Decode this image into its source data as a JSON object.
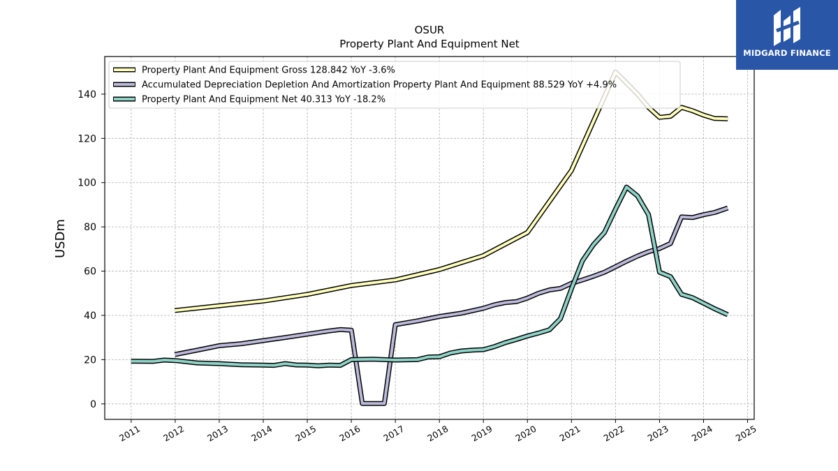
{
  "logo": {
    "text": "MIDGARD FINANCE",
    "color": "#2a56a8"
  },
  "chart_data": {
    "type": "line",
    "title": "OSUR",
    "subtitle": "Property Plant And Equipment Net",
    "xlabel": "",
    "ylabel": "USDm",
    "xlim": [
      2010.4,
      2025.15
    ],
    "ylim": [
      -7,
      157
    ],
    "x_ticks": [
      "2011",
      "2012",
      "2013",
      "2014",
      "2015",
      "2016",
      "2017",
      "2018",
      "2019",
      "2020",
      "2021",
      "2022",
      "2023",
      "2024",
      "2025"
    ],
    "y_ticks": [
      0,
      20,
      40,
      60,
      80,
      100,
      120,
      140
    ],
    "grid": true,
    "legend_position": "top-left",
    "series": [
      {
        "name": "Property Plant And Equipment Gross  128.842 YoY -3.6%",
        "color": "#ffffbb",
        "points": [
          [
            2011.99,
            42.2
          ],
          [
            2014.0,
            46.5
          ],
          [
            2015.0,
            49.5
          ],
          [
            2016.0,
            53.5
          ],
          [
            2017.0,
            56.0
          ],
          [
            2018.0,
            60.7
          ],
          [
            2019.0,
            67.0
          ],
          [
            2020.0,
            77.5
          ],
          [
            2021.0,
            105.5
          ],
          [
            2022.0,
            150.0
          ],
          [
            2022.25,
            145.0
          ],
          [
            2022.5,
            140.0
          ],
          [
            2022.75,
            134.0
          ],
          [
            2023.0,
            129.5
          ],
          [
            2023.25,
            130.0
          ],
          [
            2023.5,
            134.0
          ],
          [
            2023.75,
            132.5
          ],
          [
            2024.0,
            130.5
          ],
          [
            2024.25,
            129.0
          ],
          [
            2024.55,
            128.842
          ]
        ]
      },
      {
        "name": "Accumulated Depreciation Depletion And Amortization Property Plant And Equipment  88.529 YoY +4.9%",
        "color": "#bcb9da",
        "points": [
          [
            2011.99,
            22.3
          ],
          [
            2012.5,
            24.3
          ],
          [
            2013.0,
            26.3
          ],
          [
            2013.5,
            27.2
          ],
          [
            2014.0,
            28.6
          ],
          [
            2014.5,
            30.0
          ],
          [
            2015.0,
            31.5
          ],
          [
            2015.5,
            33.0
          ],
          [
            2015.75,
            33.6
          ],
          [
            2016.0,
            33.3
          ],
          [
            2016.25,
            0.2
          ],
          [
            2016.5,
            0.2
          ],
          [
            2016.75,
            0.2
          ],
          [
            2017.0,
            35.8
          ],
          [
            2017.5,
            37.5
          ],
          [
            2018.0,
            39.5
          ],
          [
            2018.5,
            41.0
          ],
          [
            2019.0,
            43.2
          ],
          [
            2019.25,
            44.8
          ],
          [
            2019.5,
            45.8
          ],
          [
            2019.75,
            46.2
          ],
          [
            2020.0,
            47.8
          ],
          [
            2020.25,
            50.0
          ],
          [
            2020.5,
            51.5
          ],
          [
            2020.75,
            52.2
          ],
          [
            2021.0,
            54.5
          ],
          [
            2021.25,
            56.0
          ],
          [
            2021.5,
            57.7
          ],
          [
            2021.75,
            59.5
          ],
          [
            2022.0,
            62.0
          ],
          [
            2022.25,
            64.5
          ],
          [
            2022.5,
            66.8
          ],
          [
            2022.75,
            68.8
          ],
          [
            2023.0,
            70.2
          ],
          [
            2023.25,
            72.5
          ],
          [
            2023.5,
            84.5
          ],
          [
            2023.75,
            84.2
          ],
          [
            2024.0,
            85.5
          ],
          [
            2024.25,
            86.5
          ],
          [
            2024.55,
            88.529
          ]
        ]
      },
      {
        "name": "Property Plant And Equipment Net  40.313 YoY -18.2%",
        "color": "#8dd3c7",
        "points": [
          [
            2011.0,
            19.3
          ],
          [
            2011.5,
            19.2
          ],
          [
            2011.75,
            19.8
          ],
          [
            2012.0,
            19.6
          ],
          [
            2012.5,
            18.5
          ],
          [
            2013.0,
            18.2
          ],
          [
            2013.5,
            17.7
          ],
          [
            2014.0,
            17.5
          ],
          [
            2014.25,
            17.4
          ],
          [
            2014.5,
            18.2
          ],
          [
            2014.75,
            17.6
          ],
          [
            2015.0,
            17.5
          ],
          [
            2015.25,
            17.2
          ],
          [
            2015.5,
            17.5
          ],
          [
            2015.75,
            17.4
          ],
          [
            2016.0,
            20.0
          ],
          [
            2016.5,
            20.2
          ],
          [
            2017.0,
            19.8
          ],
          [
            2017.5,
            20.0
          ],
          [
            2017.75,
            21.2
          ],
          [
            2018.0,
            21.3
          ],
          [
            2018.25,
            23.0
          ],
          [
            2018.5,
            23.9
          ],
          [
            2018.75,
            24.3
          ],
          [
            2019.0,
            24.5
          ],
          [
            2019.25,
            25.9
          ],
          [
            2019.5,
            27.7
          ],
          [
            2019.75,
            29.1
          ],
          [
            2020.0,
            30.7
          ],
          [
            2020.25,
            32.0
          ],
          [
            2020.5,
            33.5
          ],
          [
            2020.75,
            38.5
          ],
          [
            2021.0,
            52.0
          ],
          [
            2021.25,
            64.7
          ],
          [
            2021.5,
            72.0
          ],
          [
            2021.75,
            77.5
          ],
          [
            2022.0,
            88.0
          ],
          [
            2022.25,
            98.0
          ],
          [
            2022.5,
            94.0
          ],
          [
            2022.75,
            85.5
          ],
          [
            2023.0,
            59.5
          ],
          [
            2023.25,
            57.5
          ],
          [
            2023.5,
            49.5
          ],
          [
            2023.75,
            48.0
          ],
          [
            2024.0,
            45.5
          ],
          [
            2024.25,
            43.0
          ],
          [
            2024.55,
            40.313
          ]
        ]
      }
    ]
  }
}
